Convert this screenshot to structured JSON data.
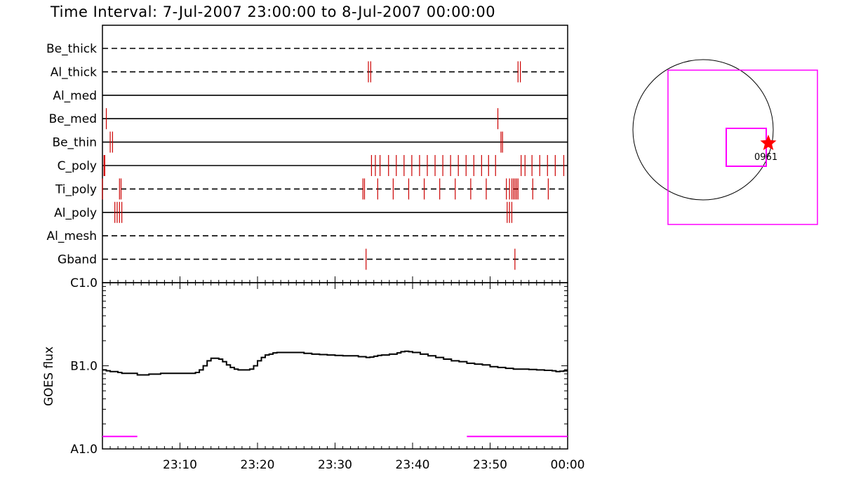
{
  "title": "Time Interval:  7-Jul-2007 23:00:00 to  8-Jul-2007 00:00:00",
  "colors": {
    "axis": "#000000",
    "mark": "#cc0000",
    "magenta": "#ff00ff",
    "star": "#ff0000"
  },
  "chart_data": [
    {
      "type": "line",
      "title": "Time Interval:  7-Jul-2007 23:00:00 to  8-Jul-2007 00:00:00",
      "xlabel": "",
      "ylabel": "",
      "xlim_minutes": [
        0,
        60
      ],
      "channels": [
        {
          "name": "Be_thick",
          "style": "dashed",
          "marks": []
        },
        {
          "name": "Al_thick",
          "style": "dashed",
          "marks": [
            34.3,
            34.6,
            53.6,
            53.9
          ]
        },
        {
          "name": "Al_med",
          "style": "solid",
          "marks": []
        },
        {
          "name": "Be_med",
          "style": "solid",
          "marks": [
            0.5,
            51.0
          ]
        },
        {
          "name": "Be_thin",
          "style": "solid",
          "marks": [
            1.0,
            1.3,
            51.4,
            51.6
          ]
        },
        {
          "name": "C_poly",
          "style": "solid",
          "marks": [
            0.2,
            0.3,
            34.7,
            35.2,
            35.8,
            36.9,
            37.9,
            38.9,
            39.9,
            40.9,
            41.9,
            42.9,
            43.9,
            44.9,
            45.9,
            46.9,
            47.9,
            48.9,
            49.8,
            50.7,
            54.0,
            54.5,
            55.4,
            56.4,
            57.4,
            58.4,
            59.5
          ]
        },
        {
          "name": "Ti_poly",
          "style": "dashed",
          "marks": [
            0.0,
            2.2,
            2.4,
            33.6,
            33.8,
            35.5,
            37.5,
            39.5,
            41.5,
            43.5,
            45.5,
            47.5,
            49.5,
            52.1,
            52.5,
            52.8,
            53.0,
            53.2,
            53.4,
            53.6,
            55.5,
            57.5
          ]
        },
        {
          "name": "Al_poly",
          "style": "solid",
          "marks": [
            1.6,
            1.9,
            2.2,
            2.5,
            52.2,
            52.5,
            52.8
          ]
        },
        {
          "name": "Al_mesh",
          "style": "dashed",
          "marks": []
        },
        {
          "name": "Gband",
          "style": "dashed",
          "marks": [
            34.0,
            53.2
          ]
        }
      ]
    },
    {
      "type": "line",
      "ylabel": "GOES flux",
      "yscale": "log",
      "ylim_decades": [
        0,
        2
      ],
      "ytick_labels": [
        "A1.0",
        "B1.0",
        "C1.0"
      ],
      "xtick_labels": [
        "23:10",
        "23:20",
        "23:30",
        "23:40",
        "23:50",
        "00:00"
      ],
      "xlim_minutes": [
        0,
        60
      ],
      "series": [
        {
          "x": [
            0,
            0.5,
            1,
            2,
            2.5,
            3,
            4,
            4.5,
            5,
            5.5,
            6,
            6.5,
            7,
            7.5,
            8,
            10,
            11,
            12,
            12.5,
            13,
            13.5,
            14,
            14.5,
            15,
            15.5,
            16,
            16.5,
            17,
            17.5,
            18,
            18.5,
            19,
            19.5,
            20,
            20.5,
            21,
            21.5,
            22,
            22.5,
            23,
            24,
            25,
            26,
            27,
            28,
            29,
            30,
            31,
            32,
            33,
            34,
            34.5,
            35,
            35.5,
            36,
            37,
            38,
            38.5,
            39,
            39.5,
            40,
            41,
            42,
            43,
            44,
            45,
            46,
            47,
            48,
            49,
            50,
            51,
            52,
            53,
            54,
            55,
            56,
            57,
            58,
            58.5,
            59,
            59.5,
            60
          ],
          "y": [
            0.95,
            0.94,
            0.93,
            0.92,
            0.91,
            0.91,
            0.91,
            0.89,
            0.89,
            0.89,
            0.9,
            0.9,
            0.9,
            0.91,
            0.91,
            0.91,
            0.91,
            0.92,
            0.95,
            1.0,
            1.06,
            1.09,
            1.09,
            1.08,
            1.05,
            1.01,
            0.98,
            0.96,
            0.95,
            0.95,
            0.95,
            0.96,
            1.0,
            1.06,
            1.1,
            1.13,
            1.14,
            1.155,
            1.16,
            1.16,
            1.16,
            1.16,
            1.15,
            1.14,
            1.135,
            1.13,
            1.125,
            1.12,
            1.12,
            1.11,
            1.1,
            1.105,
            1.115,
            1.125,
            1.13,
            1.14,
            1.155,
            1.17,
            1.175,
            1.17,
            1.16,
            1.14,
            1.12,
            1.1,
            1.08,
            1.06,
            1.05,
            1.03,
            1.02,
            1.01,
            0.99,
            0.98,
            0.97,
            0.96,
            0.96,
            0.955,
            0.95,
            0.945,
            0.94,
            0.93,
            0.935,
            0.94,
            0.94
          ]
        }
      ],
      "coverage_bars": [
        [
          0,
          4.5
        ],
        [
          47,
          60
        ]
      ]
    }
  ],
  "locator": {
    "label": "0961"
  }
}
